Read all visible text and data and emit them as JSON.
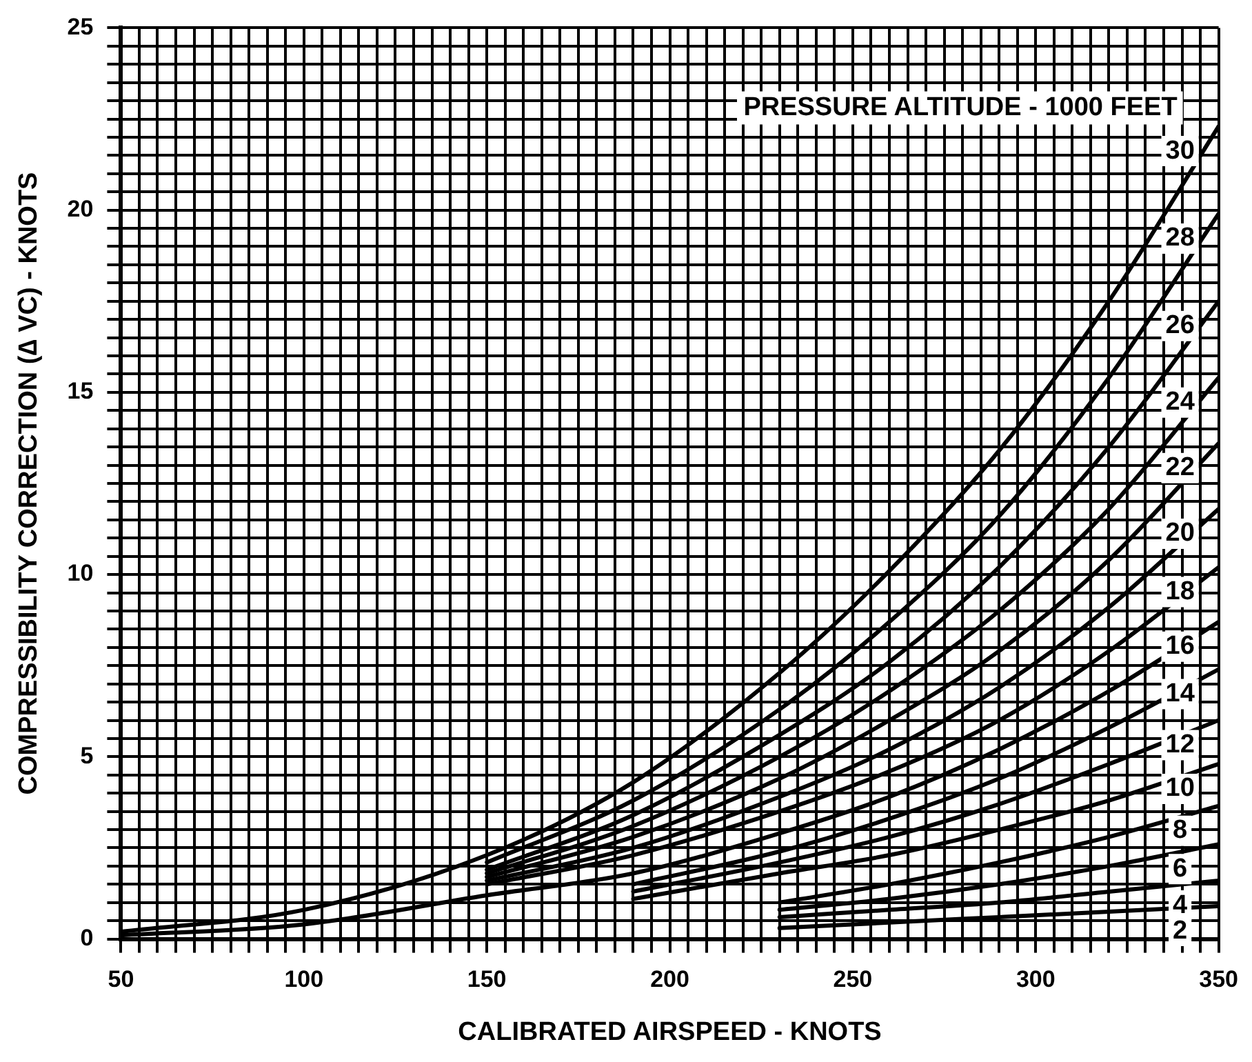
{
  "chart_data": {
    "type": "line",
    "xlabel": "CALIBRATED AIRSPEED - KNOTS",
    "ylabel": "COMPRESSIBILITY CORRECTION (∆ VC) - KNOTS",
    "legend_title": "PRESSURE ALTITUDE - 1000 FEET",
    "x": [
      50,
      100,
      150,
      190,
      230,
      260,
      290,
      320,
      350
    ],
    "series": [
      {
        "name": "30",
        "color": "#000000",
        "values": [
          0.2,
          0.8,
          2.3,
          4.3,
          7.3,
          10.1,
          13.4,
          17.5,
          22.3
        ]
      },
      {
        "name": "28",
        "color": "#000000",
        "values": [
          null,
          null,
          2.1,
          3.8,
          6.3,
          8.7,
          11.6,
          15.4,
          19.9
        ]
      },
      {
        "name": "26",
        "color": "#000000",
        "values": [
          null,
          null,
          1.9,
          3.4,
          5.6,
          7.6,
          10.2,
          13.5,
          17.5
        ]
      },
      {
        "name": "24",
        "color": "#000000",
        "values": [
          null,
          null,
          1.8,
          3.1,
          5.0,
          6.8,
          9.0,
          11.8,
          15.4
        ]
      },
      {
        "name": "22",
        "color": "#000000",
        "values": [
          null,
          null,
          1.7,
          2.8,
          4.4,
          6.0,
          7.9,
          10.4,
          13.6
        ]
      },
      {
        "name": "20",
        "color": "#000000",
        "values": [
          null,
          null,
          1.6,
          2.5,
          3.9,
          5.2,
          6.9,
          9.1,
          11.8
        ]
      },
      {
        "name": "18",
        "color": "#000000",
        "values": [
          null,
          null,
          1.5,
          2.3,
          3.5,
          4.6,
          6.0,
          7.9,
          10.2
        ]
      },
      {
        "name": "16",
        "color": "#000000",
        "values": [
          0.1,
          0.4,
          1.2,
          1.8,
          2.9,
          3.9,
          5.2,
          6.8,
          8.7
        ]
      },
      {
        "name": "14",
        "color": "#000000",
        "values": [
          null,
          null,
          null,
          1.5,
          2.4,
          3.3,
          4.4,
          5.8,
          7.4
        ]
      },
      {
        "name": "12",
        "color": "#000000",
        "values": [
          null,
          null,
          null,
          1.3,
          2.1,
          2.8,
          3.7,
          4.8,
          6.0
        ]
      },
      {
        "name": "10",
        "color": "#000000",
        "values": [
          null,
          null,
          null,
          1.1,
          1.8,
          2.3,
          3.0,
          3.8,
          4.8
        ]
      },
      {
        "name": "8",
        "color": "#000000",
        "values": [
          null,
          null,
          null,
          null,
          1.0,
          1.5,
          2.1,
          2.8,
          3.65
        ]
      },
      {
        "name": "6",
        "color": "#000000",
        "values": [
          null,
          null,
          null,
          null,
          0.8,
          1.1,
          1.5,
          2.0,
          2.6
        ]
      },
      {
        "name": "4",
        "color": "#000000",
        "values": [
          null,
          null,
          null,
          null,
          0.6,
          0.8,
          1.0,
          1.3,
          1.6
        ]
      },
      {
        "name": "2",
        "color": "#000000",
        "values": [
          null,
          null,
          null,
          null,
          0.3,
          0.45,
          0.6,
          0.75,
          0.9
        ]
      }
    ],
    "xlim": [
      50,
      350
    ],
    "xticks": [
      50,
      {
        "value": 55,
        "label": null
      },
      {
        "value": 60,
        "label": null
      },
      {
        "value": 65,
        "label": null
      },
      {
        "value": 70,
        "label": null
      },
      {
        "value": 75,
        "label": null
      },
      {
        "value": 80,
        "label": null
      },
      {
        "value": 85,
        "label": null
      },
      {
        "value": 90,
        "label": null
      },
      {
        "value": 95,
        "label": null
      },
      100,
      {
        "value": 105,
        "label": null
      },
      {
        "value": 110,
        "label": null
      },
      {
        "value": 115,
        "label": null
      },
      {
        "value": 120,
        "label": null
      },
      {
        "value": 125,
        "label": null
      },
      {
        "value": 130,
        "label": null
      },
      {
        "value": 135,
        "label": null
      },
      {
        "value": 140,
        "label": null
      },
      {
        "value": 145,
        "label": null
      },
      150,
      {
        "value": 155,
        "label": null
      },
      {
        "value": 160,
        "label": null
      },
      {
        "value": 165,
        "label": null
      },
      {
        "value": 170,
        "label": null
      },
      {
        "value": 175,
        "label": null
      },
      {
        "value": 180,
        "label": null
      },
      {
        "value": 185,
        "label": null
      },
      {
        "value": 190,
        "label": null
      },
      {
        "value": 195,
        "label": null
      },
      200,
      {
        "value": 205,
        "label": null
      },
      {
        "value": 210,
        "label": null
      },
      {
        "value": 215,
        "label": null
      },
      {
        "value": 220,
        "label": null
      },
      {
        "value": 225,
        "label": null
      },
      {
        "value": 230,
        "label": null
      },
      {
        "value": 235,
        "label": null
      },
      {
        "value": 240,
        "label": null
      },
      {
        "value": 245,
        "label": null
      },
      250,
      {
        "value": 255,
        "label": null
      },
      {
        "value": 260,
        "label": null
      },
      {
        "value": 265,
        "label": null
      },
      {
        "value": 270,
        "label": null
      },
      {
        "value": 275,
        "label": null
      },
      {
        "value": 280,
        "label": null
      },
      {
        "value": 285,
        "label": null
      },
      {
        "value": 290,
        "label": null
      },
      {
        "value": 295,
        "label": null
      },
      300,
      {
        "value": 305,
        "label": null
      },
      {
        "value": 310,
        "label": null
      },
      {
        "value": 315,
        "label": null
      },
      {
        "value": 320,
        "label": null
      },
      {
        "value": 325,
        "label": null
      },
      {
        "value": 330,
        "label": null
      },
      {
        "value": 335,
        "label": null
      },
      {
        "value": 340,
        "label": null
      },
      {
        "value": 345,
        "label": null
      },
      350
    ],
    "ylim": [
      0,
      25
    ],
    "yticks": [
      0,
      {
        "value": 0.5,
        "label": null
      },
      {
        "value": 1,
        "label": null
      },
      {
        "value": 1.5,
        "label": null
      },
      {
        "value": 2,
        "label": null
      },
      {
        "value": 2.5,
        "label": null
      },
      {
        "value": 3,
        "label": null
      },
      {
        "value": 3.5,
        "label": null
      },
      {
        "value": 4,
        "label": null
      },
      {
        "value": 4.5,
        "label": null
      },
      5,
      {
        "value": 5.5,
        "label": null
      },
      {
        "value": 6,
        "label": null
      },
      {
        "value": 6.5,
        "label": null
      },
      {
        "value": 7,
        "label": null
      },
      {
        "value": 7.5,
        "label": null
      },
      {
        "value": 8,
        "label": null
      },
      {
        "value": 8.5,
        "label": null
      },
      {
        "value": 9,
        "label": null
      },
      {
        "value": 9.5,
        "label": null
      },
      10,
      {
        "value": 10.5,
        "label": null
      },
      {
        "value": 11,
        "label": null
      },
      {
        "value": 11.5,
        "label": null
      },
      {
        "value": 12,
        "label": null
      },
      {
        "value": 12.5,
        "label": null
      },
      {
        "value": 13,
        "label": null
      },
      {
        "value": 13.5,
        "label": null
      },
      {
        "value": 14,
        "label": null
      },
      {
        "value": 14.5,
        "label": null
      },
      15,
      {
        "value": 15.5,
        "label": null
      },
      {
        "value": 16,
        "label": null
      },
      {
        "value": 16.5,
        "label": null
      },
      {
        "value": 17,
        "label": null
      },
      {
        "value": 17.5,
        "label": null
      },
      {
        "value": 18,
        "label": null
      },
      {
        "value": 18.5,
        "label": null
      },
      {
        "value": 19,
        "label": null
      },
      {
        "value": 19.5,
        "label": null
      },
      20,
      {
        "value": 20.5,
        "label": null
      },
      {
        "value": 21,
        "label": null
      },
      {
        "value": 21.5,
        "label": null
      },
      {
        "value": 22,
        "label": null
      },
      {
        "value": 22.5,
        "label": null
      },
      {
        "value": 23,
        "label": null
      },
      {
        "value": 23.5,
        "label": null
      },
      {
        "value": 24,
        "label": null
      },
      {
        "value": 24.5,
        "label": null
      },
      25
    ],
    "grid": true,
    "legend": false,
    "marker": "none",
    "line_style": "solid"
  }
}
